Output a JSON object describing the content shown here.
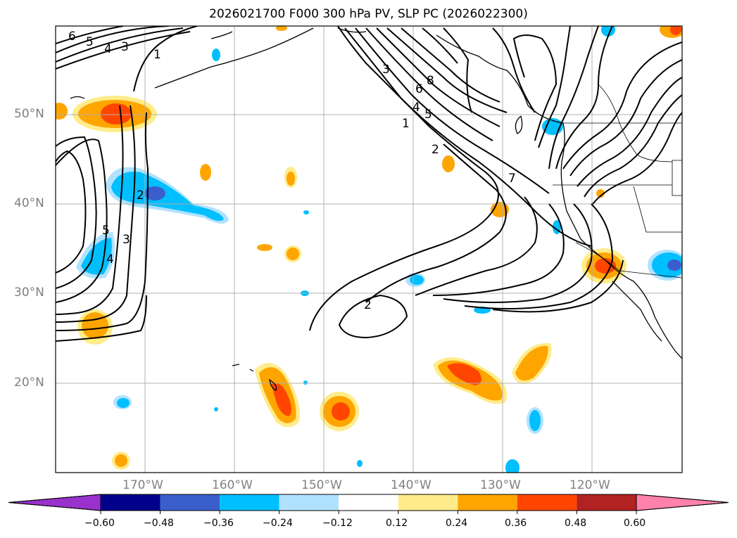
{
  "title": "2026021700 F000 300 hPa PV, SLP PC (2026022300)",
  "lat_labels": [
    "50°N",
    "40°N",
    "30°N",
    "20°N"
  ],
  "lon_labels": [
    "170°W",
    "160°W",
    "150°W",
    "140°W",
    "130°W",
    "120°W"
  ],
  "colorbar": {
    "ticks": [
      "−0.60",
      "−0.48",
      "−0.36",
      "−0.24",
      "−0.12",
      "0.12",
      "0.24",
      "0.36",
      "0.48",
      "0.60"
    ],
    "colors": [
      "#9932cc",
      "#00008b",
      "#3a5fcd",
      "#00bfff",
      "#b0e2ff",
      "#ffffff",
      "#ffec8b",
      "#ffa500",
      "#ff4500",
      "#b22222",
      "#ff82ab"
    ]
  },
  "contour_labels": [
    "6",
    "5",
    "4",
    "3",
    "1",
    "2",
    "5",
    "4",
    "3",
    "3",
    "6",
    "4",
    "5",
    "8",
    "1",
    "2",
    "7",
    "2"
  ],
  "colors": {
    "neg_light": "#b0e2ff",
    "neg_mid": "#00bfff",
    "neg_dark": "#3a5fcd",
    "pos_light": "#ffec8b",
    "pos_mid": "#ffa500",
    "pos_dark": "#ff4500",
    "grid": "#b0b0b0"
  }
}
